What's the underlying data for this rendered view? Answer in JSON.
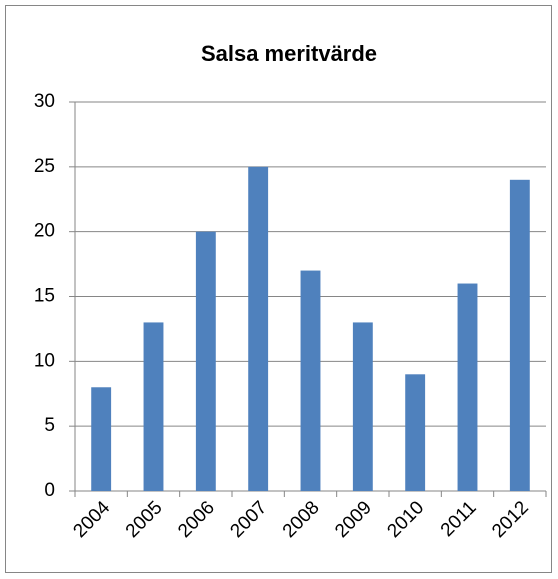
{
  "chart_data": {
    "type": "bar",
    "title": "Salsa meritvärde",
    "categories": [
      "2004",
      "2005",
      "2006",
      "2007",
      "2008",
      "2009",
      "2010",
      "2011",
      "2012"
    ],
    "values": [
      8,
      13,
      20,
      25,
      17,
      13,
      9,
      16,
      24
    ],
    "color": "#4f81bd",
    "ylim": [
      0,
      30
    ],
    "yticks": [
      0,
      5,
      10,
      15,
      20,
      25,
      30
    ],
    "grid": true
  }
}
